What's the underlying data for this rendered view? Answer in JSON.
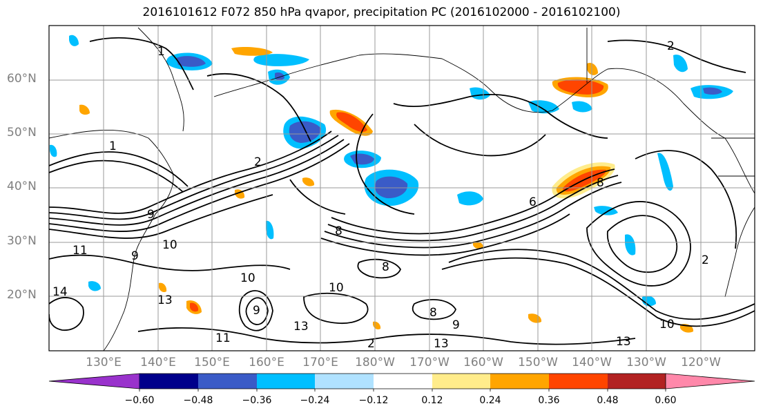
{
  "title": "2016101612 F072 850 hPa qvapor, precipitation PC (2016102000 - 2016102100)",
  "map": {
    "lat_labels": [
      "60°N",
      "50°N",
      "40°N",
      "30°N",
      "20°N"
    ],
    "lon_labels": [
      "130°E",
      "140°E",
      "150°E",
      "160°E",
      "170°E",
      "180°W",
      "170°W",
      "160°W",
      "150°W",
      "140°W",
      "130°W",
      "120°W"
    ],
    "contour_labels": [
      "1",
      "2",
      "1",
      "2",
      "6",
      "8",
      "9",
      "10",
      "11",
      "9",
      "10",
      "13",
      "14",
      "8",
      "10",
      "8",
      "9",
      "13",
      "13",
      "11",
      "2",
      "13",
      "10",
      "2",
      "9",
      "8"
    ]
  },
  "colorbar": {
    "labels": [
      "−0.60",
      "−0.48",
      "−0.36",
      "−0.24",
      "−0.12",
      "0.12",
      "0.24",
      "0.36",
      "0.48",
      "0.60"
    ],
    "colors": [
      "#9932cc",
      "#00008b",
      "#3a5bc7",
      "#00bfff",
      "#b0e2ff",
      "#ffffff",
      "#ffec8b",
      "#ffa500",
      "#ff4500",
      "#b22222",
      "#ff88aa"
    ]
  }
}
